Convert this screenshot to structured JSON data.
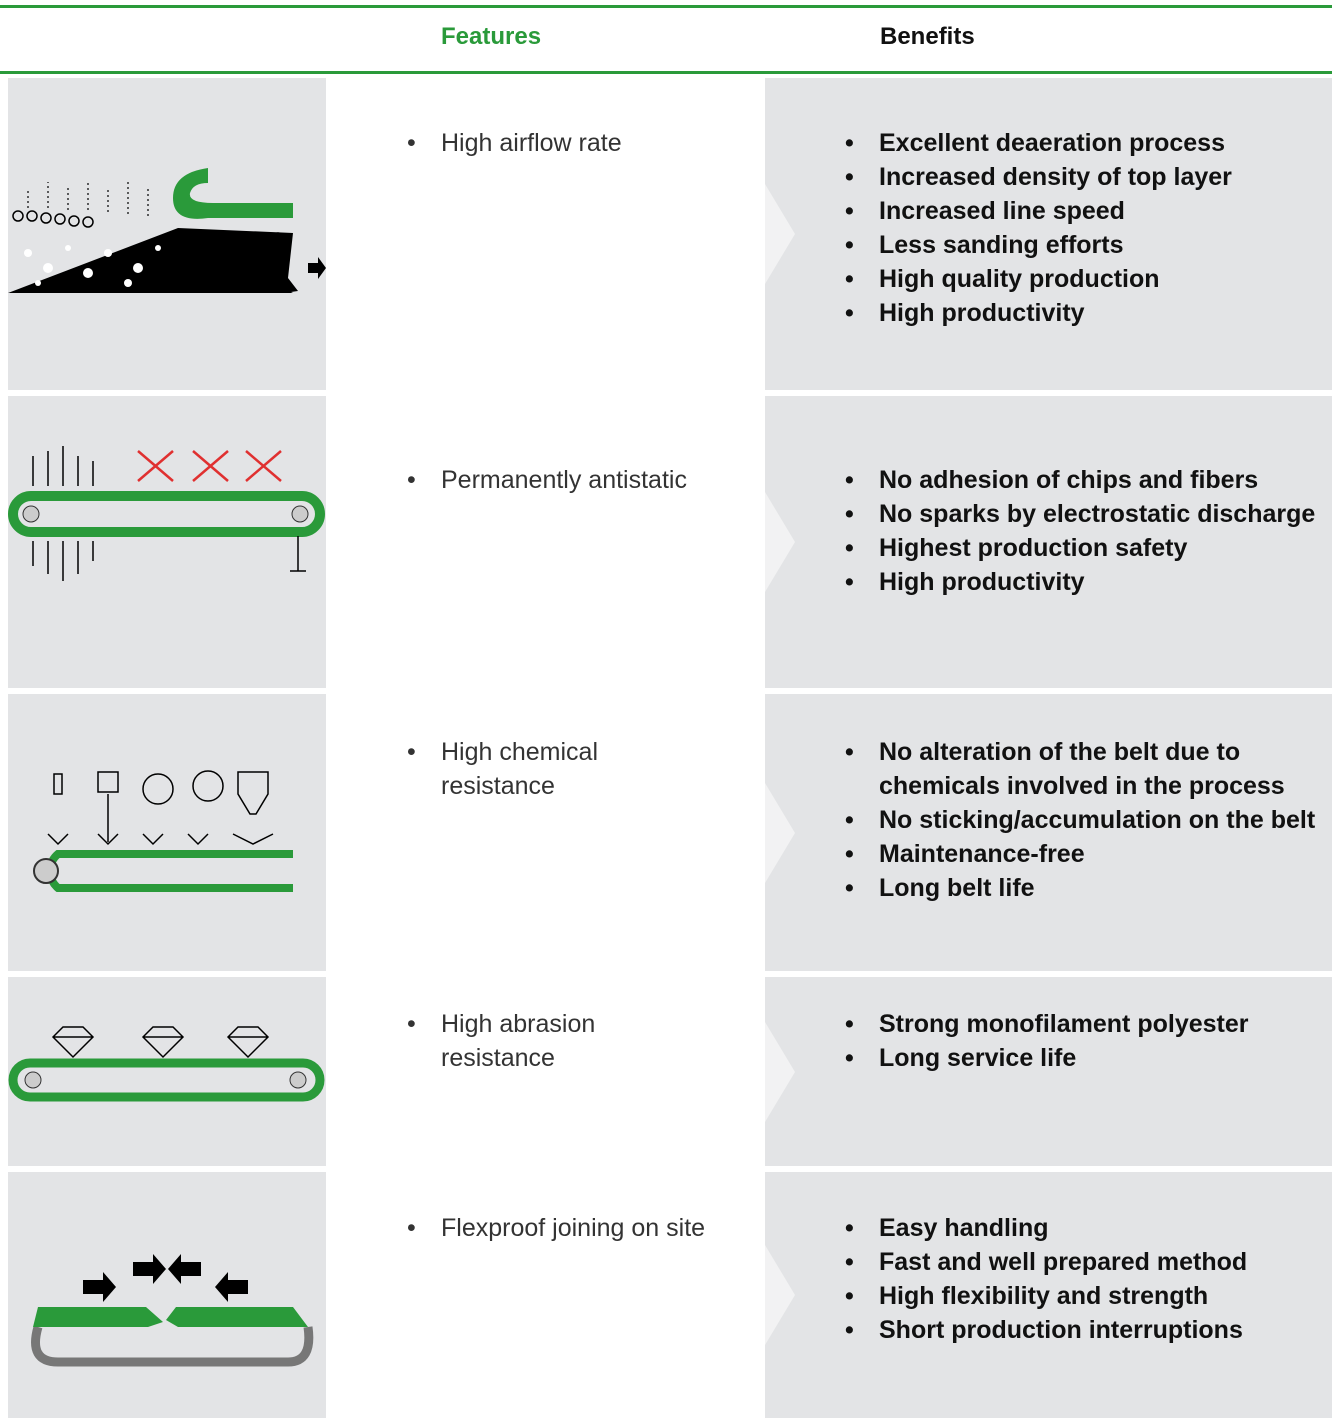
{
  "header": {
    "features": "Features",
    "benefits": "Benefits"
  },
  "rows": [
    {
      "feature": "High airflow rate",
      "benefits": [
        "Excellent deaeration process",
        "Increased density of top layer",
        "Increased line speed",
        "Less sanding efforts",
        "High quality production",
        "High productivity"
      ]
    },
    {
      "feature": "Permanently antistatic",
      "benefits": [
        "No adhesion of chips and fibers",
        "No sparks by electrostatic discharge",
        "Highest production safety",
        "High productivity"
      ]
    },
    {
      "feature": "High chemical resistance",
      "benefits": [
        "No alteration of the belt due to chemicals involved in the process",
        "No sticking/accumulation on the belt",
        "Maintenance-free",
        "Long belt life"
      ]
    },
    {
      "feature": "High abrasion resistance",
      "benefits": [
        "Strong monofilament polyester",
        "Long service life"
      ]
    },
    {
      "feature": "Flexproof joining on site",
      "benefits": [
        "Easy handling",
        "Fast and well prepared method",
        "High flexibility and strength",
        "Short production interruptions"
      ]
    }
  ]
}
